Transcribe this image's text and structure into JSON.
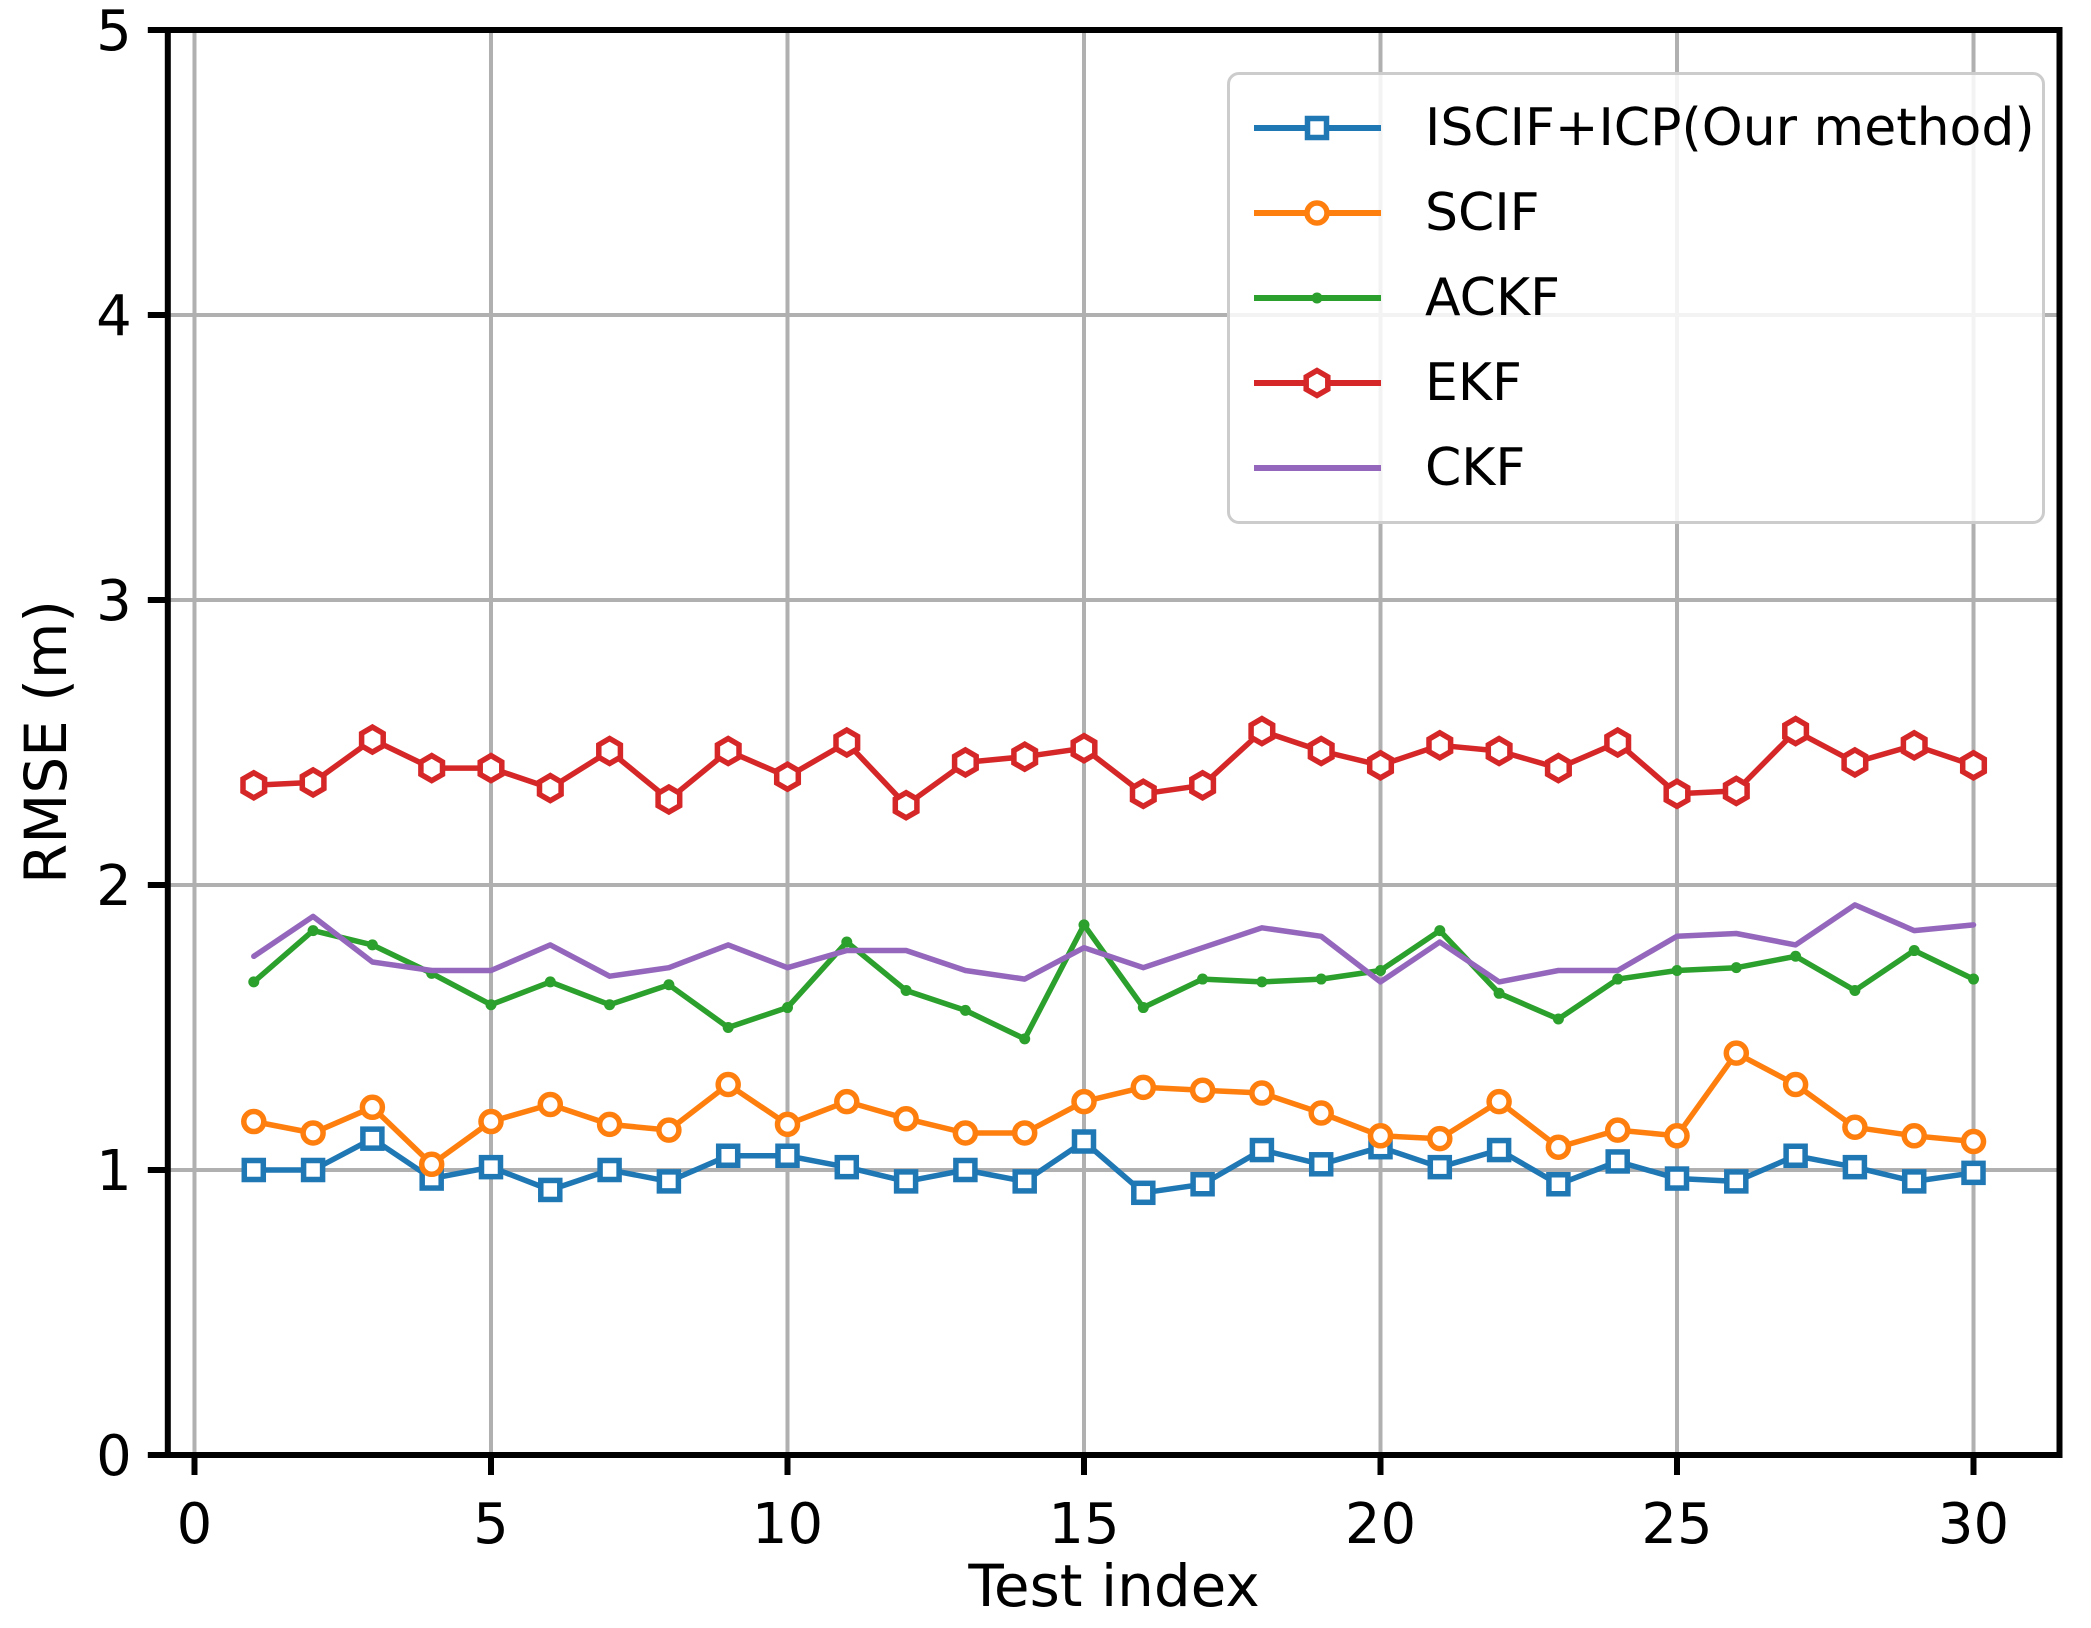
{
  "figure": {
    "background": "#ffffff",
    "grid_color": "#b0b0b0",
    "axis_color": "#000000",
    "legend_border_color": "#cccccc"
  },
  "chart_data": {
    "type": "line",
    "title": "",
    "xlabel": "Test index",
    "ylabel": "RMSE (m)",
    "xlim": [
      -0.45,
      31.45
    ],
    "ylim": [
      0,
      5
    ],
    "xticks": [
      0,
      5,
      10,
      15,
      20,
      25,
      30
    ],
    "yticks": [
      0,
      1,
      2,
      3,
      4,
      5
    ],
    "grid": true,
    "legend_position": "upper right",
    "x": [
      1,
      2,
      3,
      4,
      5,
      6,
      7,
      8,
      9,
      10,
      11,
      12,
      13,
      14,
      15,
      16,
      17,
      18,
      19,
      20,
      21,
      22,
      23,
      24,
      25,
      26,
      27,
      28,
      29,
      30
    ],
    "series": [
      {
        "name": "ISCIF+ICP(Our method)",
        "color": "#1f77b4",
        "marker": "square-open",
        "values": [
          1.0,
          1.0,
          1.11,
          0.97,
          1.01,
          0.93,
          1.0,
          0.96,
          1.05,
          1.05,
          1.01,
          0.96,
          1.0,
          0.96,
          1.1,
          0.92,
          0.95,
          1.07,
          1.02,
          1.08,
          1.01,
          1.07,
          0.95,
          1.03,
          0.97,
          0.96,
          1.05,
          1.01,
          0.96,
          0.99
        ]
      },
      {
        "name": "SCIF",
        "color": "#ff7f0e",
        "marker": "circle-open",
        "values": [
          1.17,
          1.13,
          1.22,
          1.02,
          1.17,
          1.23,
          1.16,
          1.14,
          1.3,
          1.16,
          1.24,
          1.18,
          1.13,
          1.13,
          1.24,
          1.29,
          1.28,
          1.27,
          1.2,
          1.12,
          1.11,
          1.24,
          1.08,
          1.14,
          1.12,
          1.41,
          1.3,
          1.15,
          1.12,
          1.1
        ]
      },
      {
        "name": "ACKF",
        "color": "#2ca02c",
        "marker": "dot-filled",
        "values": [
          1.66,
          1.84,
          1.79,
          1.69,
          1.58,
          1.66,
          1.58,
          1.65,
          1.5,
          1.57,
          1.8,
          1.63,
          1.56,
          1.46,
          1.86,
          1.57,
          1.67,
          1.66,
          1.67,
          1.7,
          1.84,
          1.62,
          1.53,
          1.67,
          1.7,
          1.71,
          1.75,
          1.63,
          1.77,
          1.67
        ]
      },
      {
        "name": "EKF",
        "color": "#d62728",
        "marker": "hexagon-open",
        "values": [
          2.35,
          2.36,
          2.51,
          2.41,
          2.41,
          2.34,
          2.47,
          2.3,
          2.47,
          2.38,
          2.5,
          2.28,
          2.43,
          2.45,
          2.48,
          2.32,
          2.35,
          2.54,
          2.47,
          2.42,
          2.49,
          2.47,
          2.41,
          2.5,
          2.32,
          2.33,
          2.54,
          2.43,
          2.49,
          2.42
        ]
      },
      {
        "name": "CKF",
        "color": "#9467bd",
        "marker": "none",
        "values": [
          1.75,
          1.89,
          1.73,
          1.7,
          1.7,
          1.79,
          1.68,
          1.71,
          1.79,
          1.71,
          1.77,
          1.77,
          1.7,
          1.67,
          1.78,
          1.71,
          1.78,
          1.85,
          1.82,
          1.66,
          1.8,
          1.66,
          1.7,
          1.7,
          1.82,
          1.83,
          1.79,
          1.93,
          1.84,
          1.86
        ]
      }
    ]
  }
}
